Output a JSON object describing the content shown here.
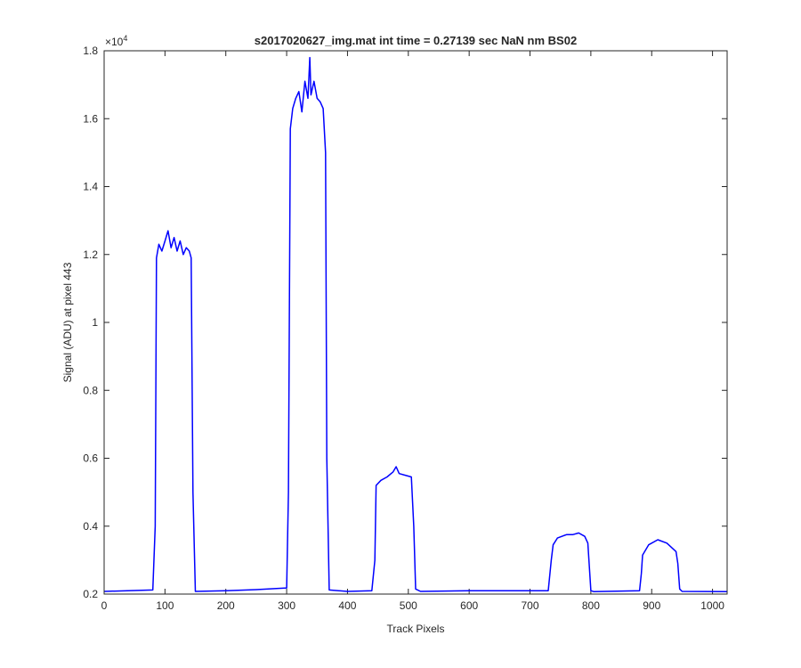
{
  "chart_data": {
    "type": "line",
    "title": "s2017020627_img.mat int time = 0.27139 sec  NaN nm BS02",
    "xlabel": "Track Pixels",
    "ylabel": "Signal (ADU) at pixel 443",
    "exponent_label": "×10",
    "exponent_power": "4",
    "xlim": [
      0,
      1024
    ],
    "ylim": [
      0.2,
      1.8
    ],
    "x_ticks": [
      0,
      100,
      200,
      300,
      400,
      500,
      600,
      700,
      800,
      900,
      1000
    ],
    "x_tick_labels": [
      "0",
      "100",
      "200",
      "300",
      "400",
      "500",
      "600",
      "700",
      "800",
      "900",
      "1000"
    ],
    "y_ticks": [
      0.2,
      0.4,
      0.6,
      0.8,
      1.0,
      1.2,
      1.4,
      1.6,
      1.8
    ],
    "y_tick_labels": [
      "0.2",
      "0.4",
      "0.6",
      "0.8",
      "1",
      "1.2",
      "1.4",
      "1.6",
      "1.8"
    ],
    "grid": false,
    "line_color": "#0000ff",
    "series": [
      {
        "x": [
          0,
          80,
          84,
          86,
          90,
          95,
          100,
          105,
          110,
          115,
          120,
          125,
          130,
          135,
          140,
          143,
          146,
          150,
          200,
          250,
          300,
          303,
          306,
          310,
          315,
          320,
          325,
          330,
          335,
          338,
          340,
          345,
          350,
          355,
          360,
          364,
          366,
          370,
          400,
          440,
          445,
          447,
          455,
          465,
          475,
          480,
          485,
          495,
          505,
          509,
          512,
          520,
          600,
          730,
          735,
          738,
          745,
          760,
          770,
          780,
          790,
          795,
          800,
          805,
          880,
          883,
          885,
          895,
          910,
          925,
          940,
          943,
          946,
          950,
          1024
        ],
        "values": [
          0.208,
          0.212,
          0.4,
          1.19,
          1.23,
          1.21,
          1.24,
          1.27,
          1.22,
          1.25,
          1.21,
          1.24,
          1.2,
          1.22,
          1.21,
          1.19,
          0.5,
          0.208,
          0.21,
          0.213,
          0.218,
          0.5,
          1.57,
          1.63,
          1.66,
          1.68,
          1.62,
          1.71,
          1.66,
          1.78,
          1.67,
          1.71,
          1.66,
          1.65,
          1.63,
          1.5,
          0.6,
          0.212,
          0.208,
          0.21,
          0.3,
          0.52,
          0.535,
          0.545,
          0.56,
          0.575,
          0.555,
          0.55,
          0.545,
          0.4,
          0.215,
          0.208,
          0.21,
          0.21,
          0.3,
          0.345,
          0.365,
          0.375,
          0.375,
          0.38,
          0.37,
          0.35,
          0.21,
          0.207,
          0.21,
          0.26,
          0.315,
          0.345,
          0.36,
          0.35,
          0.325,
          0.29,
          0.215,
          0.208,
          0.207
        ]
      }
    ]
  }
}
